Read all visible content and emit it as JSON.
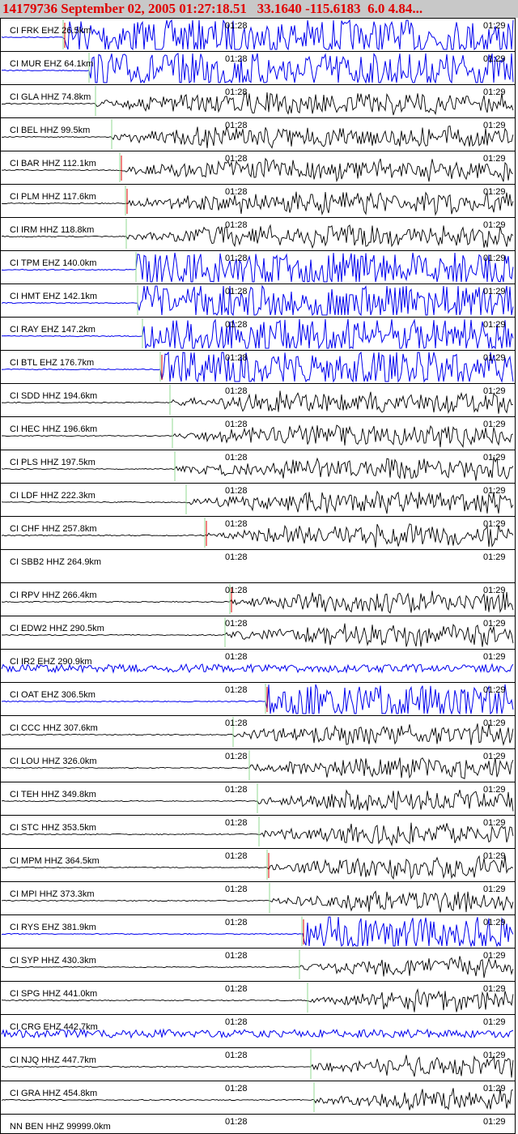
{
  "header": {
    "title": "14179736 September 02, 2005 01:27:18.51   33.1640 -115.6183  6.0 4.84..."
  },
  "time_labels": [
    "01:28",
    "01:29"
  ],
  "traces": [
    {
      "label": "CI FRK EHZ 26.5km"
    },
    {
      "label": "CI MUR EHZ 64.1km"
    },
    {
      "label": "CI GLA HHZ 74.8km"
    },
    {
      "label": "CI BEL HHZ 99.5km"
    },
    {
      "label": "CI BAR HHZ 112.1km"
    },
    {
      "label": "CI PLM HHZ 117.6km"
    },
    {
      "label": "CI IRM HHZ 118.8km"
    },
    {
      "label": "CI TPM EHZ 140.0km"
    },
    {
      "label": "CI HMT EHZ 142.1km"
    },
    {
      "label": "CI RAY EHZ 147.2km"
    },
    {
      "label": "CI BTL EHZ 176.7km"
    },
    {
      "label": "CI SDD HHZ 194.6km"
    },
    {
      "label": "CI HEC HHZ 196.6km"
    },
    {
      "label": "CI PLS HHZ 197.5km"
    },
    {
      "label": "CI LDF HHZ 222.3km"
    },
    {
      "label": "CI CHF HHZ 257.8km"
    },
    {
      "label": "CI SBB2 HHZ 264.9km"
    },
    {
      "label": "CI RPV HHZ 266.4km"
    },
    {
      "label": "CI EDW2 HHZ 290.5km"
    },
    {
      "label": "CI IR2 EHZ 290.9km"
    },
    {
      "label": "CI OAT EHZ 306.5km"
    },
    {
      "label": "CI CCC HHZ 307.6km"
    },
    {
      "label": "CI LOU HHZ 326.0km"
    },
    {
      "label": "CI TEH HHZ 349.8km"
    },
    {
      "label": "CI STC HHZ 353.5km"
    },
    {
      "label": "CI MPM HHZ 364.5km"
    },
    {
      "label": "CI MPI HHZ 373.3km"
    },
    {
      "label": "CI RYS EHZ 381.9km"
    },
    {
      "label": "CI SYP HHZ 430.3km"
    },
    {
      "label": "CI SPG HHZ 441.0km"
    },
    {
      "label": "CI CRG EHZ 442.7km"
    },
    {
      "label": "CI NJQ HHZ 447.7km"
    },
    {
      "label": "CI GRA HHZ 454.8km"
    },
    {
      "label": "NN BEN HHZ 99999.0km"
    }
  ]
}
